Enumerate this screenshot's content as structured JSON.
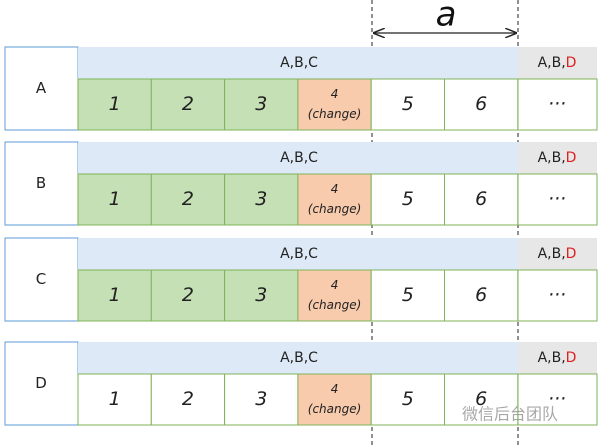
{
  "dimension_label": "a",
  "rows": [
    {
      "label": "A",
      "header": "A,B,C",
      "tail_header": {
        "prefix": "A,B,",
        "highlight": "D"
      },
      "cells": [
        "1",
        "2",
        "3"
      ],
      "changed_cell": {
        "number": "4",
        "note": "(change)"
      },
      "after_cells": [
        "5",
        "6"
      ],
      "ellipsis": "···",
      "shared_highlight": true
    },
    {
      "label": "B",
      "header": "A,B,C",
      "tail_header": {
        "prefix": "A,B,",
        "highlight": "D"
      },
      "cells": [
        "1",
        "2",
        "3"
      ],
      "changed_cell": {
        "number": "4",
        "note": "(change)"
      },
      "after_cells": [
        "5",
        "6"
      ],
      "ellipsis": "···",
      "shared_highlight": true
    },
    {
      "label": "C",
      "header": "A,B,C",
      "tail_header": {
        "prefix": "A,B,",
        "highlight": "D"
      },
      "cells": [
        "1",
        "2",
        "3"
      ],
      "changed_cell": {
        "number": "4",
        "note": "(change)"
      },
      "after_cells": [
        "5",
        "6"
      ],
      "ellipsis": "···",
      "shared_highlight": true
    },
    {
      "label": "D",
      "header": "A,B,C",
      "tail_header": {
        "prefix": "A,B,",
        "highlight": "D"
      },
      "cells": [
        "1",
        "2",
        "3"
      ],
      "changed_cell": {
        "number": "4",
        "note": "(change)"
      },
      "after_cells": [
        "5",
        "6"
      ],
      "ellipsis": "···",
      "shared_highlight": false
    }
  ],
  "watermark": "微信后台团队"
}
